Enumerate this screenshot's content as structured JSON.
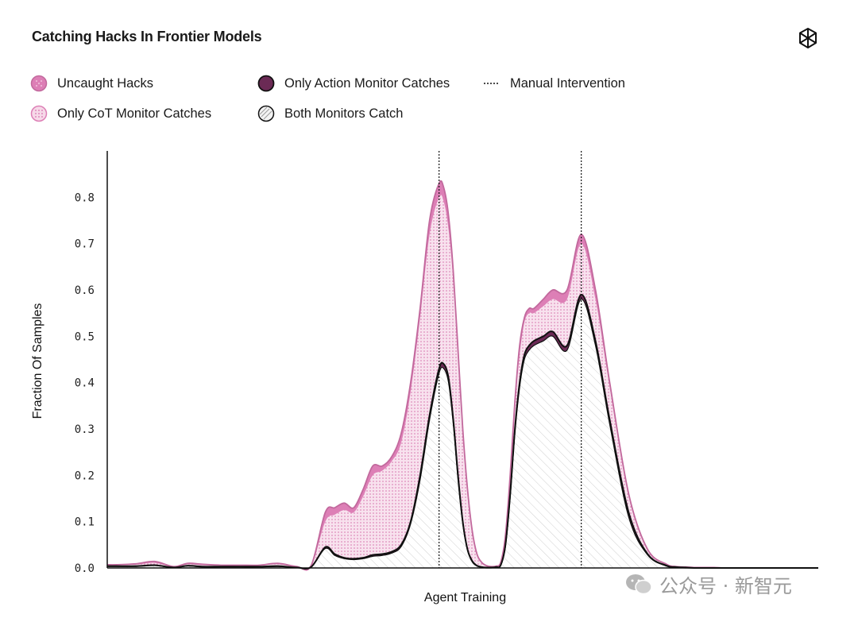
{
  "header": {
    "title": "Catching Hacks In Frontier Models"
  },
  "legend": {
    "uncaught": "Uncaught Hacks",
    "cot_only": "Only CoT Monitor Catches",
    "action_only": "Only Action Monitor Catches",
    "both": "Both Monitors Catch",
    "intervention": "Manual Intervention"
  },
  "colors": {
    "uncaught": "#dd7fb6",
    "cot_only": "#f6d9e8",
    "action_only": "#6b2a55",
    "both_line": "#111111",
    "hatch": "#d0d0d0"
  },
  "watermark": {
    "text": "公众号 · 新智元",
    "icon": "wechat-icon"
  },
  "chart_data": {
    "type": "area",
    "xlabel": "Agent Training",
    "ylabel": "Fraction Of Samples",
    "ylim": [
      0,
      0.9
    ],
    "yticks": [
      "0.0",
      "0.1",
      "0.2",
      "0.3",
      "0.4",
      "0.5",
      "0.6",
      "0.7",
      "0.8"
    ],
    "x": [
      0,
      0.02,
      0.06,
      0.1,
      0.14,
      0.17,
      0.2,
      0.24,
      0.28,
      0.32,
      0.36,
      0.4,
      0.43,
      0.46,
      0.48,
      0.5,
      0.52,
      0.54,
      0.56,
      0.58,
      0.6,
      0.62,
      0.64,
      0.66,
      0.68,
      0.7,
      0.71,
      0.72,
      0.73,
      0.74,
      0.75,
      0.76,
      0.77,
      0.78,
      0.79,
      0.8,
      0.81,
      0.82,
      0.83,
      0.84,
      0.85,
      0.86,
      0.87,
      0.88,
      0.89,
      0.9,
      0.92,
      0.94,
      0.97,
      1.0,
      1.03,
      1.06,
      1.1,
      1.14,
      1.18,
      1.2,
      1.22,
      1.24,
      1.26,
      1.28,
      1.3,
      1.32,
      1.35,
      1.38,
      1.42,
      1.46,
      1.5
    ],
    "series": [
      {
        "name": "Uncaught Hacks",
        "values": [
          0.007,
          0.007,
          0.009,
          0.014,
          0.003,
          0.01,
          0.008,
          0.006,
          0.006,
          0.006,
          0.01,
          0.003,
          0.005,
          0.12,
          0.13,
          0.14,
          0.13,
          0.17,
          0.22,
          0.22,
          0.24,
          0.29,
          0.4,
          0.56,
          0.75,
          0.83,
          0.82,
          0.76,
          0.64,
          0.47,
          0.3,
          0.17,
          0.08,
          0.03,
          0.012,
          0.005,
          0.003,
          0.004,
          0.012,
          0.07,
          0.2,
          0.36,
          0.48,
          0.54,
          0.56,
          0.56,
          0.58,
          0.6,
          0.6,
          0.72,
          0.6,
          0.4,
          0.16,
          0.04,
          0.008,
          0.003,
          0.002,
          0.001,
          0.001,
          0.001,
          0.0,
          0.0,
          0.0,
          0.0,
          0.0,
          0.0,
          0.0
        ]
      },
      {
        "name": "Only CoT Monitor Catches",
        "values": [
          0.006,
          0.006,
          0.007,
          0.011,
          0.002,
          0.008,
          0.006,
          0.005,
          0.005,
          0.005,
          0.008,
          0.002,
          0.004,
          0.1,
          0.115,
          0.125,
          0.12,
          0.155,
          0.2,
          0.21,
          0.23,
          0.27,
          0.38,
          0.54,
          0.72,
          0.8,
          0.79,
          0.73,
          0.62,
          0.45,
          0.29,
          0.16,
          0.075,
          0.027,
          0.01,
          0.004,
          0.002,
          0.003,
          0.01,
          0.065,
          0.19,
          0.35,
          0.46,
          0.53,
          0.55,
          0.55,
          0.565,
          0.58,
          0.58,
          0.7,
          0.58,
          0.39,
          0.155,
          0.038,
          0.007,
          0.002,
          0.001,
          0.001,
          0.0,
          0.0,
          0.0,
          0.0,
          0.0,
          0.0,
          0.0,
          0.0,
          0.0
        ]
      },
      {
        "name": "Only Action Monitor Catches",
        "values": [
          0.004,
          0.004,
          0.004,
          0.006,
          0.001,
          0.005,
          0.003,
          0.003,
          0.003,
          0.003,
          0.004,
          0.001,
          0.002,
          0.045,
          0.03,
          0.022,
          0.02,
          0.022,
          0.028,
          0.03,
          0.035,
          0.05,
          0.1,
          0.2,
          0.33,
          0.43,
          0.44,
          0.41,
          0.32,
          0.2,
          0.1,
          0.04,
          0.015,
          0.005,
          0.002,
          0.001,
          0.001,
          0.002,
          0.006,
          0.05,
          0.16,
          0.3,
          0.4,
          0.46,
          0.48,
          0.49,
          0.5,
          0.51,
          0.48,
          0.59,
          0.49,
          0.32,
          0.12,
          0.03,
          0.005,
          0.002,
          0.001,
          0.0,
          0.0,
          0.0,
          0.0,
          0.0,
          0.0,
          0.0,
          0.0,
          0.0,
          0.0
        ]
      },
      {
        "name": "Both Monitors Catch",
        "values": [
          0.003,
          0.003,
          0.003,
          0.005,
          0.001,
          0.004,
          0.002,
          0.002,
          0.002,
          0.002,
          0.003,
          0.001,
          0.002,
          0.042,
          0.027,
          0.02,
          0.018,
          0.02,
          0.025,
          0.027,
          0.032,
          0.046,
          0.095,
          0.19,
          0.32,
          0.42,
          0.43,
          0.4,
          0.31,
          0.19,
          0.095,
          0.038,
          0.013,
          0.004,
          0.001,
          0.0,
          0.0,
          0.001,
          0.005,
          0.045,
          0.15,
          0.29,
          0.39,
          0.45,
          0.47,
          0.48,
          0.49,
          0.5,
          0.47,
          0.58,
          0.48,
          0.31,
          0.11,
          0.028,
          0.004,
          0.001,
          0.0,
          0.0,
          0.0,
          0.0,
          0.0,
          0.0,
          0.0,
          0.0,
          0.0,
          0.0,
          0.0
        ]
      }
    ],
    "interventions": [
      0.7,
      1.0
    ],
    "grid": false
  }
}
